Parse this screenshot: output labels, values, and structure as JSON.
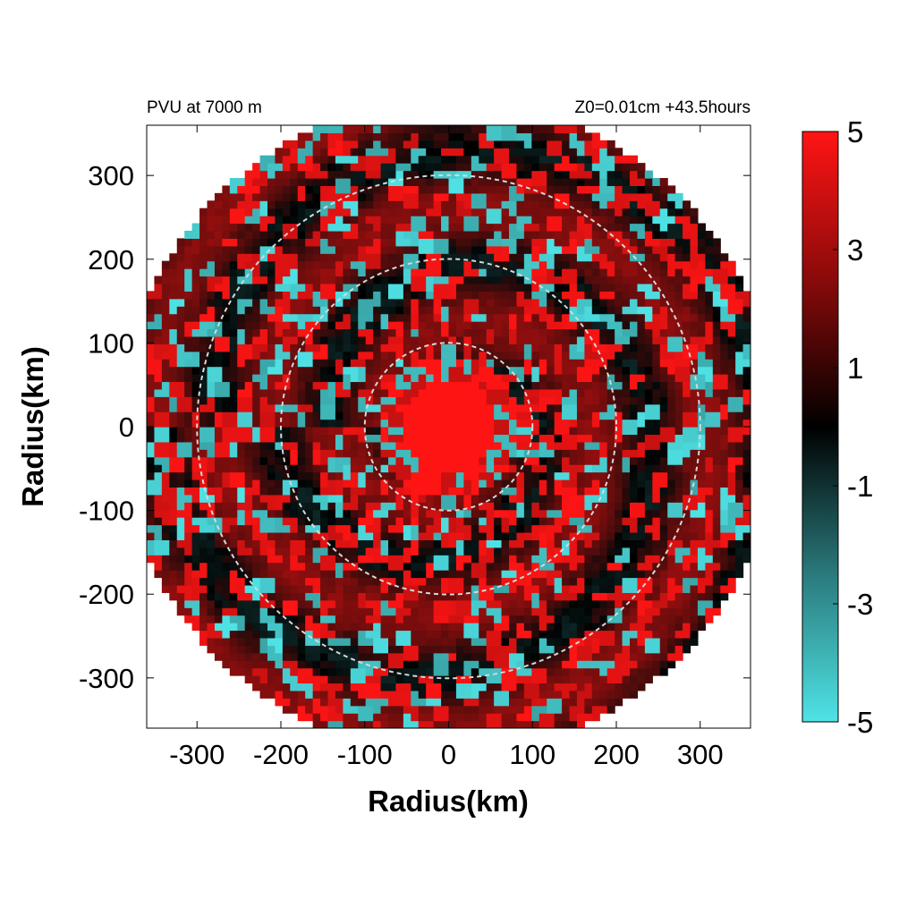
{
  "chart_data": {
    "type": "heatmap",
    "title_left": "PVU at  7000 m",
    "title_right": "Z0=0.01cm  +43.5hours",
    "xlabel": "Radius(km)",
    "ylabel": "Radius(km)",
    "xlim": [
      -360,
      360
    ],
    "ylim": [
      -360,
      360
    ],
    "x_ticks": [
      -300,
      -200,
      -100,
      0,
      100,
      200,
      300
    ],
    "y_ticks": [
      300,
      200,
      100,
      0,
      -100,
      -200,
      -300
    ],
    "domain_radius_km": 390,
    "reference_circles_km": [
      100,
      200,
      300
    ],
    "colorbar": {
      "min": -5,
      "max": 5,
      "ticks": [
        5,
        3,
        1,
        -1,
        -3,
        -5
      ],
      "colors": {
        "negative": "#4fe3e6",
        "zero": "#000000",
        "positive": "#ff1414"
      }
    },
    "field_description": "Potential vorticity: strong positive core near center radius < 60 km, ring of mixed positive/negative bands outward"
  }
}
